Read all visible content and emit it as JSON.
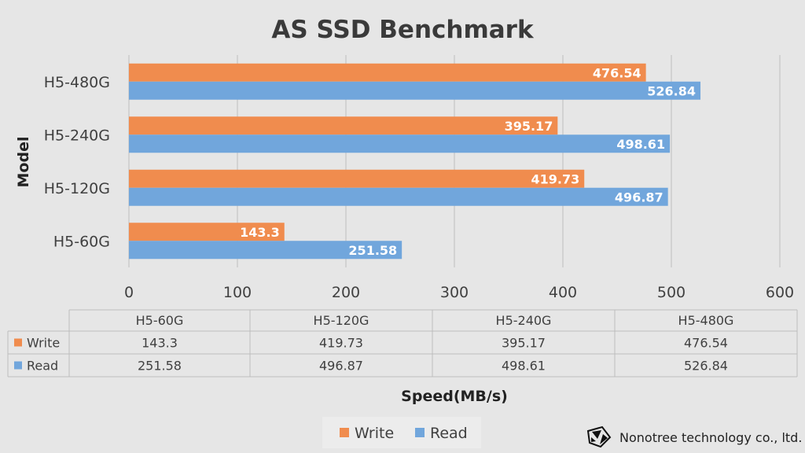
{
  "chart_data": {
    "type": "bar",
    "orientation": "horizontal",
    "title": "AS SSD Benchmark",
    "xlabel": "Speed(MB/s)",
    "ylabel": "Model",
    "categories": [
      "H5-60G",
      "H5-120G",
      "H5-240G",
      "H5-480G"
    ],
    "series": [
      {
        "name": "Write",
        "color": "#f08c4e",
        "values": [
          143.3,
          419.73,
          395.17,
          476.54
        ],
        "labels": [
          "143.3",
          "419.73",
          "395.17",
          "476.54"
        ]
      },
      {
        "name": "Read",
        "color": "#71a6dc",
        "values": [
          251.58,
          496.87,
          498.61,
          526.84
        ],
        "labels": [
          "251.58",
          "496.87",
          "498.61",
          "526.84"
        ]
      }
    ],
    "xlim": [
      0,
      600
    ],
    "xticks": [
      0,
      100,
      200,
      300,
      400,
      500,
      600
    ],
    "grid": true,
    "legend_position": "bottom",
    "data_table": true
  },
  "branding": {
    "company": "Nonotree technology co., ltd.",
    "logo_icon": "nonotree-logo-icon"
  }
}
